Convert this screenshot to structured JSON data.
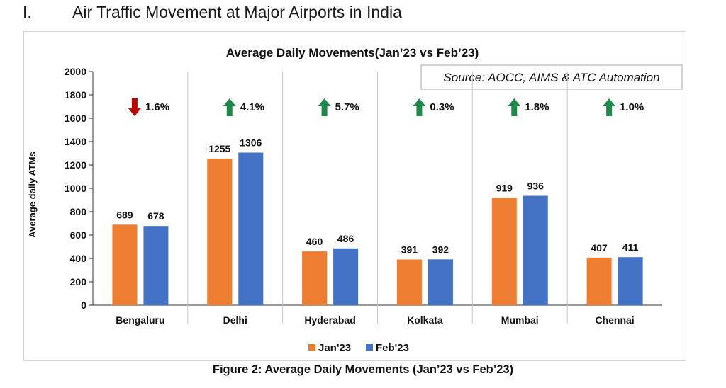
{
  "page": {
    "section_number": "I.",
    "section_title": "Air Traffic Movement at Major Airports in India",
    "figure_caption": "Figure 2: Average Daily Movements (Jan’23 vs Feb’23)"
  },
  "colors": {
    "jan": "#ED7D31",
    "feb": "#4472C4",
    "arrow_up": "#1E8A4A",
    "arrow_down": "#C00000"
  },
  "chart_data": {
    "type": "bar",
    "title": "Average Daily Movements(Jan’23 vs Feb’23)",
    "ylabel": "Average daily ATMs",
    "xlabel": "",
    "ylim": [
      0,
      2000
    ],
    "y_ticks": [
      0,
      200,
      400,
      600,
      800,
      1000,
      1200,
      1400,
      1600,
      1800,
      2000
    ],
    "grid": false,
    "legend_position": "bottom",
    "source_note": "Source: AOCC, AIMS & ATC Automation",
    "categories": [
      "Bengaluru",
      "Delhi",
      "Hyderabad",
      "Kolkata",
      "Mumbai",
      "Chennai"
    ],
    "series": [
      {
        "name": "Jan'23",
        "values": [
          689,
          1255,
          460,
          391,
          919,
          407
        ]
      },
      {
        "name": "Feb'23",
        "values": [
          678,
          1306,
          486,
          392,
          936,
          411
        ]
      }
    ],
    "annotations": [
      {
        "category": "Bengaluru",
        "direction": "down",
        "label": "1.6%"
      },
      {
        "category": "Delhi",
        "direction": "up",
        "label": "4.1%"
      },
      {
        "category": "Hyderabad",
        "direction": "up",
        "label": "5.7%"
      },
      {
        "category": "Kolkata",
        "direction": "up",
        "label": "0.3%"
      },
      {
        "category": "Mumbai",
        "direction": "up",
        "label": "1.8%"
      },
      {
        "category": "Chennai",
        "direction": "up",
        "label": "1.0%"
      }
    ]
  }
}
